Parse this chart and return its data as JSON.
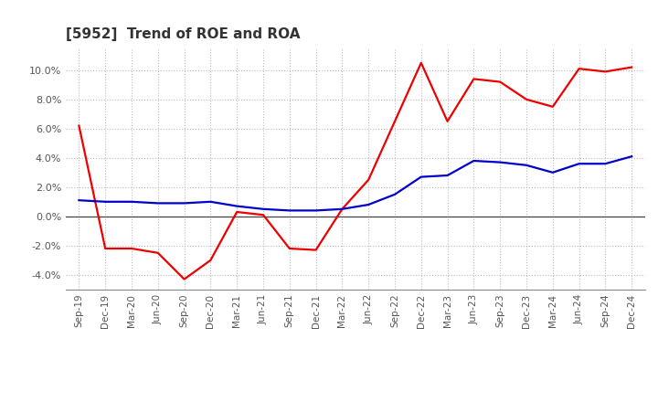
{
  "title": "[5952]  Trend of ROE and ROA",
  "x_labels": [
    "Sep-19",
    "Dec-19",
    "Mar-20",
    "Jun-20",
    "Sep-20",
    "Dec-20",
    "Mar-21",
    "Jun-21",
    "Sep-21",
    "Dec-21",
    "Mar-22",
    "Jun-22",
    "Sep-22",
    "Dec-22",
    "Mar-23",
    "Jun-23",
    "Sep-23",
    "Dec-23",
    "Mar-24",
    "Jun-24",
    "Sep-24",
    "Dec-24"
  ],
  "roe": [
    6.2,
    -2.2,
    -2.2,
    -2.5,
    -4.3,
    -3.0,
    0.3,
    0.1,
    -2.2,
    -2.3,
    0.5,
    2.5,
    6.5,
    10.5,
    6.5,
    9.4,
    9.2,
    8.0,
    7.5,
    10.1,
    9.9,
    10.2
  ],
  "roa": [
    1.1,
    1.0,
    1.0,
    0.9,
    0.9,
    1.0,
    0.7,
    0.5,
    0.4,
    0.4,
    0.5,
    0.8,
    1.5,
    2.7,
    2.8,
    3.8,
    3.7,
    3.5,
    3.0,
    3.6,
    3.6,
    4.1
  ],
  "roe_color": "#EE0000",
  "roa_color": "#0000CC",
  "background_color": "#FFFFFF",
  "grid_color": "#BBBBBB",
  "ylim": [
    -5.0,
    11.5
  ],
  "yticks": [
    -4.0,
    -2.0,
    0.0,
    2.0,
    4.0,
    6.0,
    8.0,
    10.0
  ],
  "title_color": "#333333",
  "line_width": 1.6,
  "tick_color": "#555555",
  "spine_color": "#888888"
}
